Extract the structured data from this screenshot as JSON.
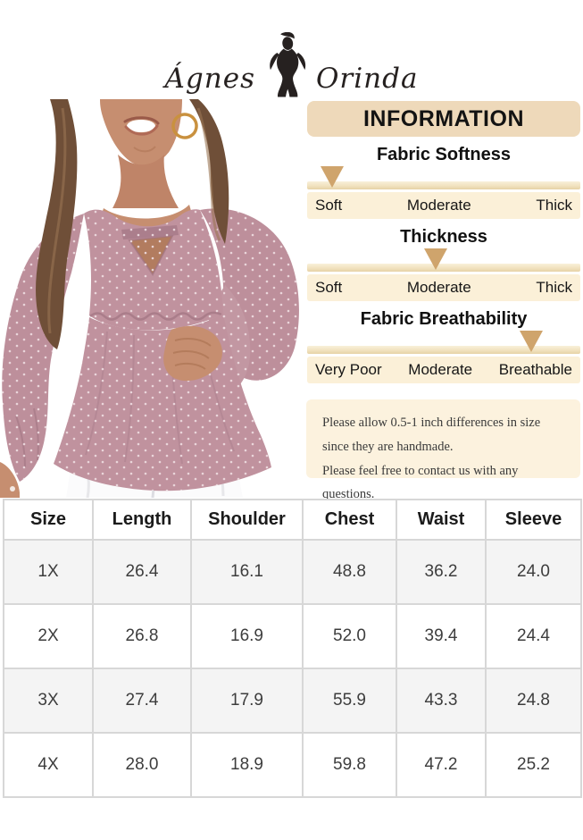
{
  "brand": {
    "name_left": "Ágnes",
    "name_right": "Orinda"
  },
  "info_panel": {
    "title": "INFORMATION",
    "scales": [
      {
        "heading": "Fabric Softness",
        "labels": [
          "Soft",
          "Moderate",
          "Thick"
        ],
        "selected": "Soft",
        "pointer_percent": 9
      },
      {
        "heading": "Thickness",
        "labels": [
          "Soft",
          "Moderate",
          "Thick"
        ],
        "selected": "Moderate",
        "pointer_percent": 47
      },
      {
        "heading": "Fabric Breathability",
        "labels": [
          "Very Poor",
          "Moderate",
          "Breathable"
        ],
        "selected": "Breathable",
        "pointer_percent": 82
      }
    ],
    "note": {
      "line1": "Please allow 0.5-1 inch differences in size since they are handmade.",
      "line2": "Please feel free to contact us with any questions."
    }
  },
  "photo": {
    "description": "Model wearing a dusty pink swiss-dot keyhole-neck peplum blouse with long puff sleeves and white pants, hand on hip"
  },
  "size_table": {
    "headers": [
      "Size",
      "Length",
      "Shoulder",
      "Chest",
      "Waist",
      "Sleeve"
    ],
    "rows": [
      {
        "size": "1X",
        "values": [
          "26.4",
          "16.1",
          "48.8",
          "36.2",
          "24.0"
        ]
      },
      {
        "size": "2X",
        "values": [
          "26.8",
          "16.9",
          "52.0",
          "39.4",
          "24.4"
        ]
      },
      {
        "size": "3X",
        "values": [
          "27.4",
          "17.9",
          "55.9",
          "43.3",
          "24.8"
        ]
      },
      {
        "size": "4X",
        "values": [
          "28.0",
          "18.9",
          "59.8",
          "47.2",
          "25.2"
        ]
      }
    ]
  },
  "colors": {
    "accent_tan": "#cfa46c",
    "panel_header": "#eed9ba",
    "label_band": "#fbf0d8",
    "note_bg": "#fcf2de",
    "blouse": "#c0929e",
    "table_border": "#d7d7d7",
    "table_alt_row": "#f4f4f4"
  }
}
